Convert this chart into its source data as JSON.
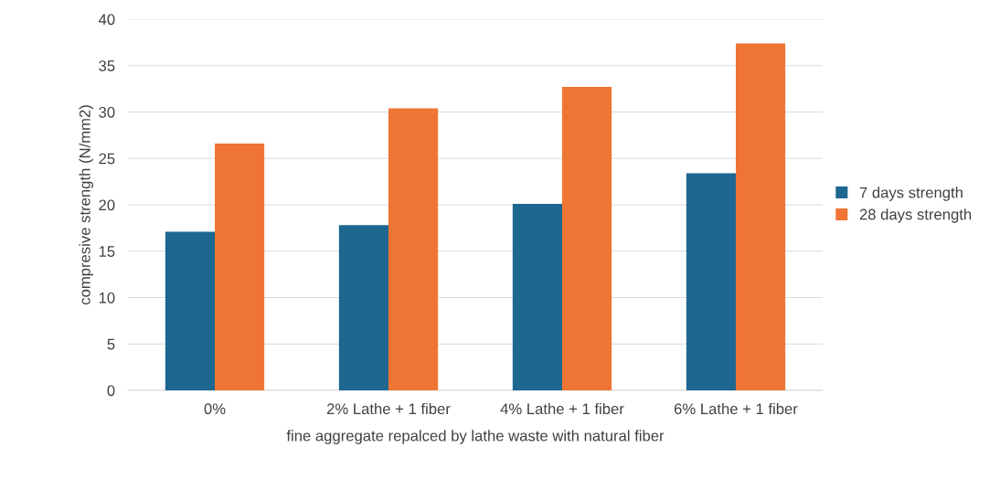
{
  "chart_data": {
    "type": "bar",
    "xlabel": "fine aggregate repalced by lathe waste with natural fiber",
    "ylabel": "compresive strength (N/mm2)",
    "categories": [
      "0%",
      "2% Lathe + 1 fiber",
      "4% Lathe + 1 fiber",
      "6% Lathe + 1 fiber"
    ],
    "series": [
      {
        "name": "7 days strength",
        "color": "#1d6791",
        "values": [
          17.1,
          17.8,
          20.1,
          23.4
        ]
      },
      {
        "name": "28 days strength",
        "color": "#ef7534",
        "values": [
          26.6,
          30.4,
          32.7,
          37.4
        ]
      }
    ],
    "ylim": [
      0,
      40
    ],
    "yticks": [
      0,
      5,
      10,
      15,
      20,
      25,
      30,
      35,
      40
    ],
    "grid": "y",
    "legend": "right"
  }
}
